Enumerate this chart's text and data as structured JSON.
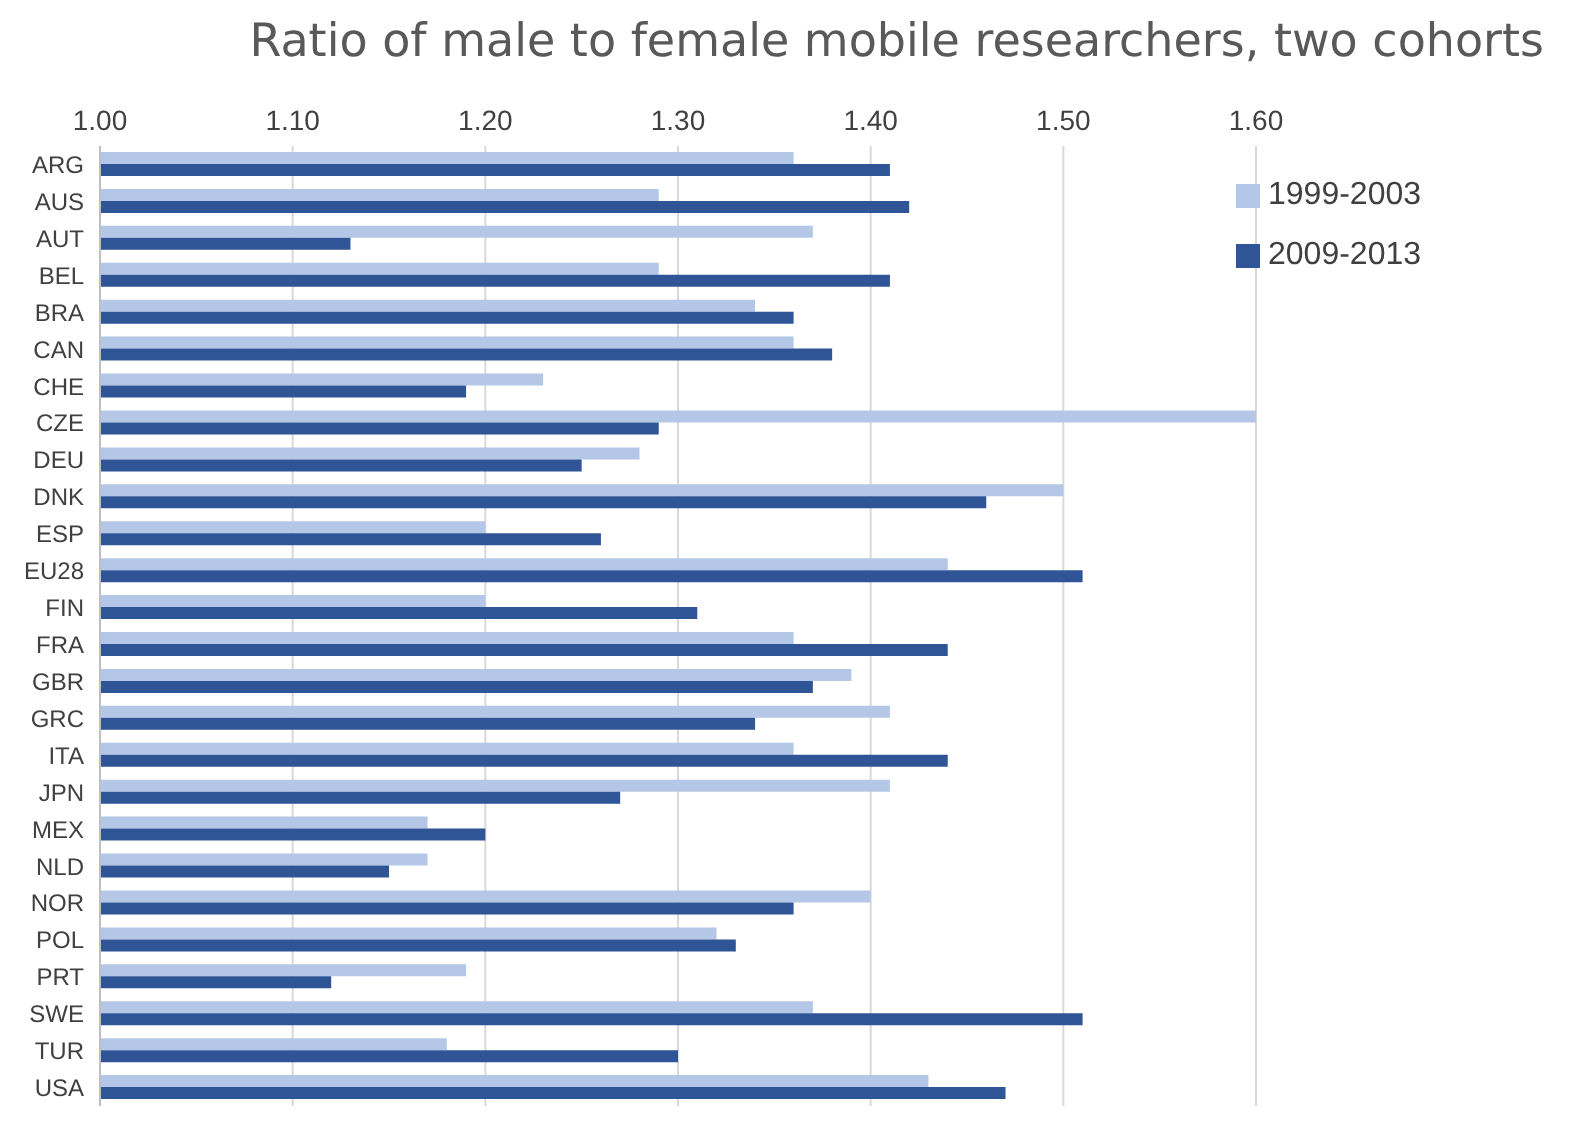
{
  "chart_data": {
    "type": "bar",
    "orientation": "horizontal",
    "title": "Ratio of male to female mobile researchers, two cohorts",
    "categories": [
      "ARG",
      "AUS",
      "AUT",
      "BEL",
      "BRA",
      "CAN",
      "CHE",
      "CZE",
      "DEU",
      "DNK",
      "ESP",
      "EU28",
      "FIN",
      "FRA",
      "GBR",
      "GRC",
      "ITA",
      "JPN",
      "MEX",
      "NLD",
      "NOR",
      "POL",
      "PRT",
      "SWE",
      "TUR",
      "USA"
    ],
    "series": [
      {
        "name": "1999-2003",
        "color": "#b4c7e7",
        "values": [
          1.36,
          1.29,
          1.37,
          1.29,
          1.34,
          1.36,
          1.23,
          1.6,
          1.28,
          1.5,
          1.2,
          1.44,
          1.2,
          1.36,
          1.39,
          1.41,
          1.36,
          1.41,
          1.17,
          1.17,
          1.4,
          1.32,
          1.19,
          1.37,
          1.18,
          1.43
        ]
      },
      {
        "name": "2009-2013",
        "color": "#2f5597",
        "values": [
          1.41,
          1.42,
          1.13,
          1.41,
          1.36,
          1.38,
          1.19,
          1.29,
          1.25,
          1.46,
          1.26,
          1.51,
          1.31,
          1.44,
          1.37,
          1.34,
          1.44,
          1.27,
          1.2,
          1.15,
          1.36,
          1.33,
          1.12,
          1.51,
          1.3,
          1.47
        ]
      }
    ],
    "xlim": [
      1.0,
      1.6
    ],
    "xticks": [
      {
        "value": 1.0,
        "label": "1.00"
      },
      {
        "value": 1.1,
        "label": "1.10"
      },
      {
        "value": 1.2,
        "label": "1.20"
      },
      {
        "value": 1.3,
        "label": "1.30"
      },
      {
        "value": 1.4,
        "label": "1.40"
      },
      {
        "value": 1.5,
        "label": "1.50"
      },
      {
        "value": 1.6,
        "label": "1.60"
      }
    ],
    "grid": "x",
    "legend": "top right"
  }
}
